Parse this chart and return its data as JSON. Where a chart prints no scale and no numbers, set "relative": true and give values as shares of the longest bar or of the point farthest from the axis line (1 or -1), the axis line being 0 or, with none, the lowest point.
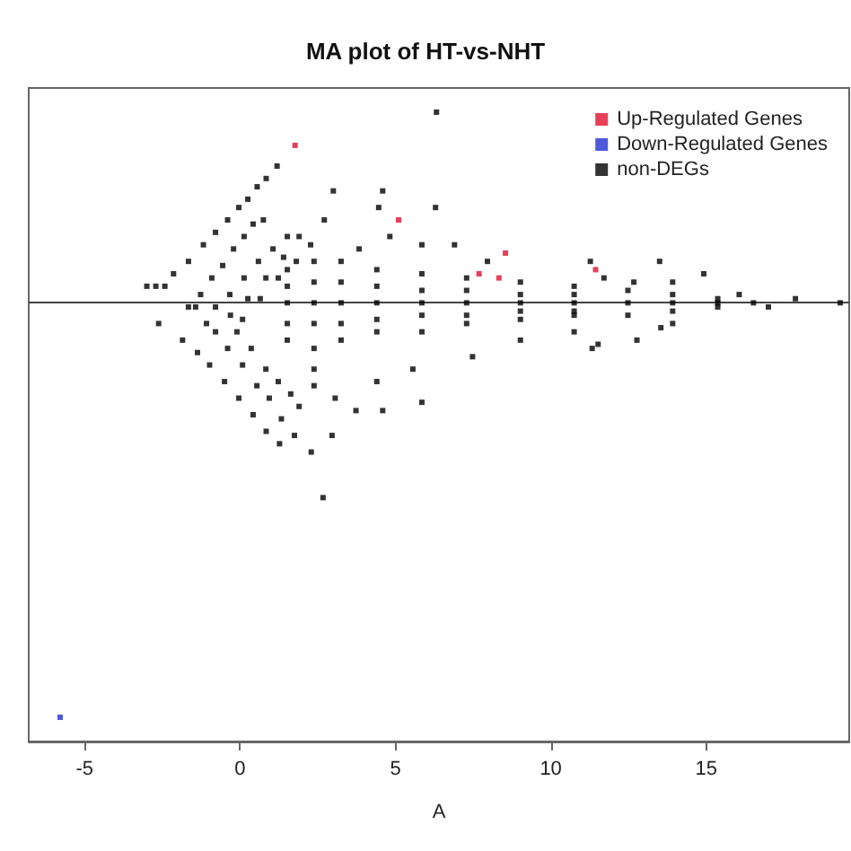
{
  "chart_data": {
    "type": "scatter",
    "title": "MA plot of HT-vs-NHT",
    "xlabel": "A",
    "relative": true,
    "xlim": [
      -6.8,
      19.6
    ],
    "xticks": [
      -5,
      0,
      5,
      10,
      15
    ],
    "tick_labels": "x",
    "legend": "top right",
    "marker": "square",
    "ref_lines": [
      {
        "axis": "y",
        "value": 0,
        "color": "#444444"
      }
    ],
    "series": [
      {
        "name": "Up-Regulated Genes",
        "color": "#e0102f",
        "x": [
          1.77,
          5.1,
          8.54,
          11.44,
          7.69,
          8.33
        ],
        "values": [
          0.38,
          0.2,
          0.12,
          0.08,
          0.07,
          0.06
        ]
      },
      {
        "name": "Down-Regulated Genes",
        "color": "#1f2fd0",
        "x": [
          -5.79
        ],
        "values": [
          -1.0
        ]
      },
      {
        "name": "non-DEGs",
        "color": "#000000",
        "x": [
          -3.0,
          -2.71,
          -2.42,
          -2.62,
          -1.66,
          -1.43,
          -2.14,
          -1.66,
          -1.18,
          -0.79,
          -0.4,
          -0.04,
          0.25,
          0.55,
          0.84,
          1.19,
          -1.27,
          -0.91,
          -0.56,
          -0.21,
          0.13,
          0.42,
          0.75,
          -0.79,
          -0.33,
          0.13,
          0.59,
          1.06,
          1.52,
          -0.31,
          0.25,
          0.83,
          1.4,
          1.9,
          0.08,
          0.65,
          1.23,
          1.81,
          2.27,
          -1.85,
          -1.37,
          -0.98,
          -0.5,
          -0.04,
          0.42,
          0.84,
          1.27,
          -1.08,
          -0.79,
          -0.4,
          0.08,
          0.54,
          0.94,
          1.33,
          1.75,
          -0.1,
          0.36,
          0.83,
          1.23,
          1.63,
          1.52,
          1.52,
          1.52,
          1.52,
          1.52,
          2.38,
          2.38,
          2.38,
          2.38,
          2.38,
          2.38,
          3.25,
          3.25,
          3.25,
          3.25,
          3.25,
          4.4,
          4.4,
          4.4,
          4.4,
          4.4,
          5.85,
          5.85,
          5.85,
          5.85,
          5.85,
          7.29,
          7.29,
          7.29,
          7.29,
          7.29,
          9.02,
          9.02,
          9.02,
          9.02,
          9.02,
          10.75,
          10.75,
          10.75,
          10.75,
          10.75,
          12.48,
          12.48,
          12.48,
          13.92,
          13.92,
          13.92,
          15.37,
          15.37,
          15.37,
          16.06,
          16.52,
          17.0,
          17.87,
          19.31,
          6.32,
          3.0,
          4.59,
          4.46,
          6.29,
          2.71,
          4.82,
          5.85,
          6.9,
          7.96,
          11.27,
          13.5,
          14.92,
          12.67,
          13.92,
          11.71,
          3.83,
          2.67,
          2.29,
          2.96,
          1.9,
          3.06,
          3.73,
          4.59,
          5.85,
          4.4,
          5.56,
          7.48,
          9.02,
          10.75,
          11.33,
          11.52,
          12.77,
          13.54,
          13.92,
          2.38
        ],
        "values": [
          0.04,
          0.04,
          0.04,
          -0.05,
          -0.01,
          -0.01,
          0.07,
          0.1,
          0.14,
          0.17,
          0.2,
          0.23,
          0.25,
          0.28,
          0.3,
          0.33,
          0.02,
          0.06,
          0.09,
          0.13,
          0.16,
          0.19,
          0.2,
          -0.01,
          0.02,
          0.06,
          0.1,
          0.13,
          0.16,
          -0.03,
          0.01,
          0.06,
          0.11,
          0.16,
          -0.04,
          0.01,
          0.06,
          0.1,
          0.14,
          -0.09,
          -0.12,
          -0.15,
          -0.19,
          -0.23,
          -0.27,
          -0.31,
          -0.34,
          -0.05,
          -0.07,
          -0.11,
          -0.15,
          -0.2,
          -0.23,
          -0.28,
          -0.32,
          -0.07,
          -0.11,
          -0.16,
          -0.19,
          -0.22,
          0.08,
          0.04,
          0.0,
          -0.05,
          -0.09,
          0.1,
          0.05,
          0.0,
          -0.05,
          -0.11,
          -0.16,
          0.1,
          0.05,
          0.0,
          -0.05,
          -0.09,
          0.08,
          0.04,
          0.0,
          -0.04,
          -0.07,
          0.07,
          0.03,
          0.0,
          -0.03,
          -0.07,
          0.06,
          0.03,
          0.0,
          -0.03,
          -0.05,
          0.05,
          0.02,
          0.0,
          -0.02,
          -0.04,
          0.04,
          0.02,
          0.0,
          -0.02,
          -0.03,
          0.03,
          0.0,
          -0.03,
          0.02,
          0.0,
          -0.02,
          0.01,
          0.0,
          -0.01,
          0.02,
          0.0,
          -0.01,
          0.01,
          0.0,
          0.46,
          0.27,
          0.27,
          0.23,
          0.23,
          0.2,
          0.16,
          0.14,
          0.14,
          0.1,
          0.1,
          0.1,
          0.07,
          0.05,
          0.05,
          0.06,
          0.13,
          -0.47,
          -0.36,
          -0.32,
          -0.25,
          -0.23,
          -0.26,
          -0.26,
          -0.24,
          -0.19,
          -0.16,
          -0.13,
          -0.09,
          -0.07,
          -0.11,
          -0.1,
          -0.09,
          -0.06,
          -0.05,
          -0.2
        ]
      }
    ]
  }
}
